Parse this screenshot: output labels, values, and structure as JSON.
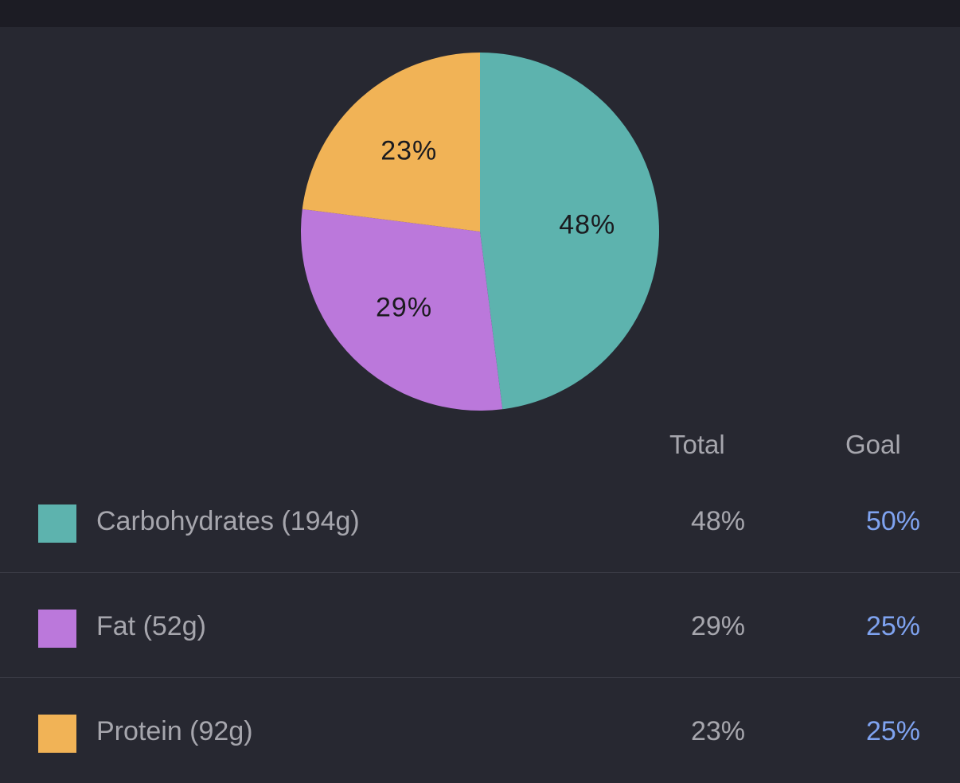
{
  "chart_data": {
    "type": "pie",
    "slices": [
      {
        "name": "Carbohydrates",
        "value": 48,
        "label": "48%",
        "color": "#5db3ae"
      },
      {
        "name": "Fat",
        "value": 29,
        "label": "29%",
        "color": "#bb78db"
      },
      {
        "name": "Protein",
        "value": 23,
        "label": "23%",
        "color": "#f1b356"
      }
    ],
    "start": "top",
    "direction": "clockwise"
  },
  "table": {
    "headers": {
      "total": "Total",
      "goal": "Goal"
    },
    "rows": [
      {
        "label": "Carbohydrates (194g)",
        "total": "48%",
        "goal": "50%",
        "color": "#5db3ae"
      },
      {
        "label": "Fat (52g)",
        "total": "29%",
        "goal": "25%",
        "color": "#bb78db"
      },
      {
        "label": "Protein (92g)",
        "total": "23%",
        "goal": "25%",
        "color": "#f1b356"
      }
    ]
  },
  "colors": {
    "background": "#272831",
    "top_bar": "#1c1c24",
    "text_muted": "#a6a6ad",
    "goal_accent": "#7fa3f0"
  }
}
